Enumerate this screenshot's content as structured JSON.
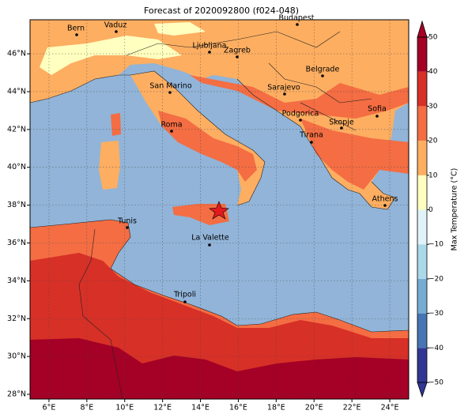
{
  "title": "Forecast of 2020092800 (f024-048)",
  "map": {
    "xlim": [
      5,
      25
    ],
    "ylim": [
      27.75,
      47.8
    ],
    "xticks": [
      {
        "value": 6,
        "label": "6°E"
      },
      {
        "value": 8,
        "label": "8°E"
      },
      {
        "value": 10,
        "label": "10°E"
      },
      {
        "value": 12,
        "label": "12°E"
      },
      {
        "value": 14,
        "label": "14°E"
      },
      {
        "value": 16,
        "label": "16°E"
      },
      {
        "value": 18,
        "label": "18°E"
      },
      {
        "value": 20,
        "label": "20°E"
      },
      {
        "value": 22,
        "label": "22°E"
      },
      {
        "value": 24,
        "label": "24°E"
      }
    ],
    "yticks": [
      {
        "value": 28,
        "label": "28°N"
      },
      {
        "value": 30,
        "label": "30°N"
      },
      {
        "value": 32,
        "label": "32°N"
      },
      {
        "value": 34,
        "label": "34°N"
      },
      {
        "value": 36,
        "label": "36°N"
      },
      {
        "value": 38,
        "label": "38°N"
      },
      {
        "value": 40,
        "label": "40°N"
      },
      {
        "value": 42,
        "label": "42°N"
      },
      {
        "value": 44,
        "label": "44°N"
      },
      {
        "value": 46,
        "label": "46°N"
      }
    ],
    "grid": true
  },
  "cities": [
    "Bern",
    "Vaduz",
    "Budapest",
    "Ljubljana",
    "Zagreb",
    "Belgrade",
    "Sarajevo",
    "San Marino",
    "Roma",
    "Podgorica",
    "Skopje",
    "Sofia",
    "Tirana",
    "Athens",
    "Tunis",
    "La Valette",
    "Tripoli"
  ],
  "colorbar": {
    "label": "Max Temperature (°C)",
    "lim": [
      -50,
      50
    ],
    "levels": [
      -50,
      -40,
      -30,
      -20,
      -10,
      0,
      10,
      20,
      30,
      40,
      50
    ],
    "colors": [
      "#313695",
      "#4575b4",
      "#74add1",
      "#abd9e9",
      "#e0f3f8",
      "#ffffbf",
      "#fdae61",
      "#f46d43",
      "#d73027",
      "#a50026"
    ],
    "ticks": [
      {
        "value": -50,
        "label": "−50"
      },
      {
        "value": -40,
        "label": "−40"
      },
      {
        "value": -30,
        "label": "−30"
      },
      {
        "value": -20,
        "label": "−20"
      },
      {
        "value": -10,
        "label": "−10"
      },
      0,
      10,
      20,
      30,
      40,
      50
    ]
  }
}
